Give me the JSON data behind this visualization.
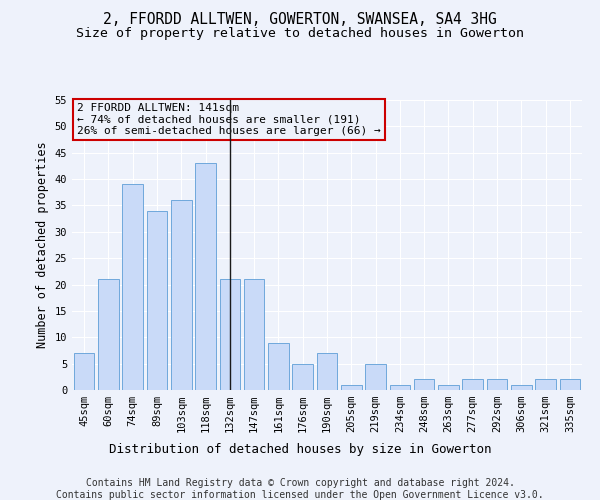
{
  "title": "2, FFORDD ALLTWEN, GOWERTON, SWANSEA, SA4 3HG",
  "subtitle": "Size of property relative to detached houses in Gowerton",
  "xlabel": "Distribution of detached houses by size in Gowerton",
  "ylabel": "Number of detached properties",
  "categories": [
    "45sqm",
    "60sqm",
    "74sqm",
    "89sqm",
    "103sqm",
    "118sqm",
    "132sqm",
    "147sqm",
    "161sqm",
    "176sqm",
    "190sqm",
    "205sqm",
    "219sqm",
    "234sqm",
    "248sqm",
    "263sqm",
    "277sqm",
    "292sqm",
    "306sqm",
    "321sqm",
    "335sqm"
  ],
  "values": [
    7,
    21,
    39,
    34,
    36,
    43,
    21,
    21,
    9,
    5,
    7,
    1,
    5,
    1,
    2,
    1,
    2,
    2,
    1,
    2,
    2
  ],
  "bar_color": "#c9daf8",
  "bar_edge_color": "#6fa8dc",
  "highlight_index": 6,
  "highlight_line_color": "#1a1a1a",
  "ylim": [
    0,
    55
  ],
  "yticks": [
    0,
    5,
    10,
    15,
    20,
    25,
    30,
    35,
    40,
    45,
    50,
    55
  ],
  "annotation_line1": "2 FFORDD ALLTWEN: 141sqm",
  "annotation_line2": "← 74% of detached houses are smaller (191)",
  "annotation_line3": "26% of semi-detached houses are larger (66) →",
  "annotation_box_color": "#cc0000",
  "footer_line1": "Contains HM Land Registry data © Crown copyright and database right 2024.",
  "footer_line2": "Contains public sector information licensed under the Open Government Licence v3.0.",
  "background_color": "#eef2fb",
  "grid_color": "#ffffff",
  "title_fontsize": 10.5,
  "subtitle_fontsize": 9.5,
  "axis_label_fontsize": 8.5,
  "tick_fontsize": 7.5,
  "annotation_fontsize": 8,
  "footer_fontsize": 7
}
